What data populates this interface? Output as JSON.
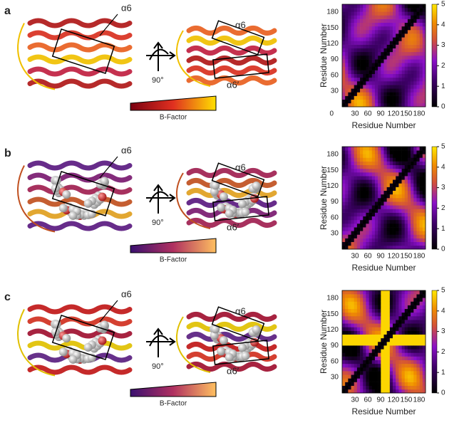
{
  "panels": [
    {
      "label": "a",
      "structure_1": {
        "helix_label": "α6"
      },
      "rotation_label": "90°",
      "structure_2": {
        "helix_label": "α6",
        "helix_label_2": "α6′"
      },
      "bfactor_label": "B-Factor",
      "heatmap": {
        "xlabel": "Residue Number",
        "ylabel": "Residue Number",
        "origin_label": "0",
        "xticks": [
          30,
          60,
          90,
          120,
          150,
          180
        ],
        "yticks": [
          30,
          60,
          90,
          120,
          150,
          180
        ],
        "colorbar_ticks": [
          0,
          1,
          2,
          3,
          4,
          5
        ]
      }
    },
    {
      "label": "b",
      "structure_1": {
        "helix_label": "α6"
      },
      "rotation_label": "90°",
      "structure_2": {
        "helix_label": "α6",
        "helix_label_2": "α6′"
      },
      "bfactor_label": "B-Factor",
      "heatmap": {
        "xlabel": "Residue Number",
        "ylabel": "Residue Number",
        "xticks": [
          30,
          60,
          90,
          120,
          150,
          180
        ],
        "yticks": [
          30,
          60,
          90,
          120,
          150,
          180
        ],
        "colorbar_ticks": [
          0,
          1,
          2,
          3,
          4,
          5
        ]
      }
    },
    {
      "label": "c",
      "structure_1": {
        "helix_label": "α6"
      },
      "rotation_label": "90°",
      "structure_2": {
        "helix_label": "α6",
        "helix_label_2": "α6′"
      },
      "bfactor_label": "B-Factor",
      "heatmap": {
        "xlabel": "Residue Number",
        "ylabel": "Residue Number",
        "xticks": [
          30,
          60,
          90,
          120,
          150,
          180
        ],
        "yticks": [
          30,
          60,
          90,
          120,
          150,
          180
        ],
        "colorbar_ticks": [
          0,
          1,
          2,
          3,
          4,
          5
        ]
      }
    }
  ]
}
